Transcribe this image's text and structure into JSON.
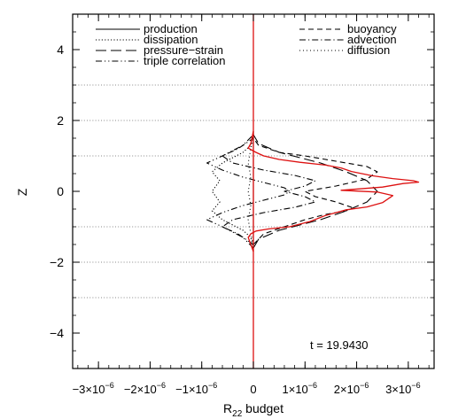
{
  "chart_data": {
    "type": "line",
    "title": "",
    "xlabel_main": "R",
    "xlabel_sub": "22",
    "xlabel_rest": " budget",
    "ylabel": "Z",
    "xlim": [
      -3.5e-06,
      3.5e-06
    ],
    "ylim": [
      -5,
      5
    ],
    "x_ticks": [
      {
        "value": -3e-06,
        "mantissa": "−3×10",
        "exp": "−6"
      },
      {
        "value": -2e-06,
        "mantissa": "−2×10",
        "exp": "−6"
      },
      {
        "value": -1e-06,
        "mantissa": "−1×10",
        "exp": "−6"
      },
      {
        "value": 0,
        "mantissa": "0",
        "exp": ""
      },
      {
        "value": 1e-06,
        "mantissa": "1×10",
        "exp": "−6"
      },
      {
        "value": 2e-06,
        "mantissa": "2×10",
        "exp": "−6"
      },
      {
        "value": 3e-06,
        "mantissa": "3×10",
        "exp": "−6"
      }
    ],
    "y_ticks": [
      -4,
      -2,
      0,
      2,
      4
    ],
    "y_tick_labels": [
      "−4",
      "−2",
      "0",
      "2",
      "4"
    ],
    "reference_lines_y": [
      -3,
      -2,
      -1,
      1,
      2,
      3
    ],
    "annotation": "t = 19.9430",
    "legend": {
      "left": [
        "production",
        "dissipation",
        "pressure−strain",
        "triple correlation"
      ],
      "right": [
        "buoyancy",
        "advection",
        "diffusion"
      ]
    },
    "series": [
      {
        "name": "production",
        "style": "solid",
        "color": "#000000",
        "points": [
          [
            0,
            -1.7
          ],
          [
            0,
            1.7
          ]
        ]
      },
      {
        "name": "dissipation",
        "style": "dotted",
        "color": "#000000",
        "points": [
          [
            0,
            -1.6
          ],
          [
            -5e-08,
            -1.3
          ],
          [
            -2e-07,
            -1.1
          ],
          [
            -6e-07,
            -0.8
          ],
          [
            -8e-07,
            -0.55
          ],
          [
            -6.5e-07,
            -0.3
          ],
          [
            -8e-07,
            0
          ],
          [
            -6.5e-07,
            0.3
          ],
          [
            -8e-07,
            0.55
          ],
          [
            -6e-07,
            0.8
          ],
          [
            -2e-07,
            1.1
          ],
          [
            -5e-08,
            1.3
          ],
          [
            0,
            1.6
          ]
        ]
      },
      {
        "name": "pressure−strain",
        "style": "longdash",
        "color": "#000000",
        "points": [
          [
            0,
            -1.6
          ],
          [
            1e-07,
            -1.35
          ],
          [
            5e-07,
            -1.1
          ],
          [
            9e-07,
            -0.95
          ],
          [
            1.3e-06,
            -0.8
          ],
          [
            1.8e-06,
            -0.55
          ],
          [
            2.2e-06,
            -0.3
          ],
          [
            2.4e-06,
            0
          ],
          [
            2.2e-06,
            0.3
          ],
          [
            1.8e-06,
            0.55
          ],
          [
            1.3e-06,
            0.8
          ],
          [
            9e-07,
            0.95
          ],
          [
            5e-07,
            1.1
          ],
          [
            1e-07,
            1.35
          ],
          [
            0,
            1.6
          ]
        ]
      },
      {
        "name": "triple correlation",
        "style": "dashdotdot",
        "color": "#000000",
        "points": [
          [
            0,
            -1.6
          ],
          [
            -2e-07,
            -1.3
          ],
          [
            -6e-07,
            -1.0
          ],
          [
            -9e-07,
            -0.8
          ],
          [
            -6e-07,
            -0.6
          ],
          [
            -2e-07,
            -0.4
          ],
          [
            2e-07,
            -0.25
          ],
          [
            6e-07,
            -0.1
          ],
          [
            7e-07,
            0
          ],
          [
            6e-07,
            0.1
          ],
          [
            2e-07,
            0.25
          ],
          [
            -2e-07,
            0.4
          ],
          [
            -6e-07,
            0.6
          ],
          [
            -9e-07,
            0.8
          ],
          [
            -6e-07,
            1.0
          ],
          [
            -2e-07,
            1.3
          ],
          [
            0,
            1.6
          ]
        ]
      },
      {
        "name": "buoyancy",
        "style": "dashed",
        "color": "#000000",
        "points": [
          [
            0,
            -1.5
          ],
          [
            2e-07,
            -1.2
          ],
          [
            6e-07,
            -1.0
          ],
          [
            1e-06,
            -0.8
          ],
          [
            1.4e-06,
            -0.65
          ],
          [
            1.8e-06,
            -0.55
          ],
          [
            1.9e-06,
            -0.45
          ],
          [
            1.6e-06,
            -0.3
          ],
          [
            1.2e-06,
            -0.15
          ],
          [
            1e-06,
            0
          ],
          [
            1.6e-06,
            0.15
          ],
          [
            2.2e-06,
            0.35
          ],
          [
            2.4e-06,
            0.55
          ],
          [
            2.2e-06,
            0.7
          ],
          [
            1.6e-06,
            0.85
          ],
          [
            1e-06,
            1.0
          ],
          [
            5e-07,
            1.1
          ],
          [
            1e-07,
            1.3
          ],
          [
            0,
            1.5
          ]
        ]
      },
      {
        "name": "advection",
        "style": "dashdot",
        "color": "#000000",
        "points": [
          [
            0,
            -1.5
          ],
          [
            -3e-07,
            -1.2
          ],
          [
            -6e-07,
            -1.0
          ],
          [
            -4e-07,
            -0.8
          ],
          [
            2e-07,
            -0.6
          ],
          [
            8e-07,
            -0.45
          ],
          [
            1.2e-06,
            -0.3
          ],
          [
            1e-06,
            -0.15
          ],
          [
            6e-07,
            0
          ],
          [
            1e-06,
            0.15
          ],
          [
            1.2e-06,
            0.3
          ],
          [
            8e-07,
            0.45
          ],
          [
            2e-07,
            0.6
          ],
          [
            -4e-07,
            0.8
          ],
          [
            -6e-07,
            1.0
          ],
          [
            -3e-07,
            1.2
          ],
          [
            0,
            1.5
          ]
        ]
      },
      {
        "name": "diffusion",
        "style": "finedot",
        "color": "#000000",
        "points": [
          [
            0,
            -1.5
          ],
          [
            -5e-08,
            -1.2
          ],
          [
            -1e-07,
            -0.8
          ],
          [
            -5e-08,
            -0.4
          ],
          [
            -1e-07,
            0
          ],
          [
            -5e-08,
            0.4
          ],
          [
            -1e-07,
            0.8
          ],
          [
            -5e-08,
            1.2
          ],
          [
            0,
            1.5
          ]
        ]
      },
      {
        "name": "",
        "style": "solid",
        "color": "#dd1111",
        "points": [
          [
            0,
            -1.7
          ],
          [
            -1e-07,
            -1.3
          ],
          [
            -5e-08,
            -1.2
          ],
          [
            5e-08,
            -1.12
          ],
          [
            3e-07,
            -1.06
          ],
          [
            7e-07,
            -1.0
          ],
          [
            1.1e-06,
            -0.85
          ],
          [
            1.4e-06,
            -0.68
          ],
          [
            1.6e-06,
            -0.6
          ],
          [
            1.8e-06,
            -0.52
          ],
          [
            2.2e-06,
            -0.44
          ],
          [
            2.5e-06,
            -0.32
          ],
          [
            2.7e-06,
            -0.12
          ],
          [
            2.4e-06,
            -0.02
          ],
          [
            1.7e-06,
            0.03
          ],
          [
            2.5e-06,
            0.12
          ],
          [
            2.9e-06,
            0.22
          ],
          [
            3.2e-06,
            0.26
          ],
          [
            3.1e-06,
            0.3
          ],
          [
            2.7e-06,
            0.36
          ],
          [
            2.3e-06,
            0.44
          ],
          [
            1.9e-06,
            0.56
          ],
          [
            1.7e-06,
            0.66
          ],
          [
            1.4e-06,
            0.74
          ],
          [
            9e-07,
            0.82
          ],
          [
            5e-07,
            0.9
          ],
          [
            2e-07,
            1.0
          ],
          [
            5e-08,
            1.1
          ],
          [
            -1e-07,
            1.22
          ],
          [
            -5e-08,
            1.35
          ],
          [
            0,
            1.7
          ]
        ]
      },
      {
        "name": "",
        "style": "solid",
        "color": "#dd1111",
        "points": [
          [
            0,
            -5
          ],
          [
            0,
            5
          ]
        ]
      }
    ]
  }
}
